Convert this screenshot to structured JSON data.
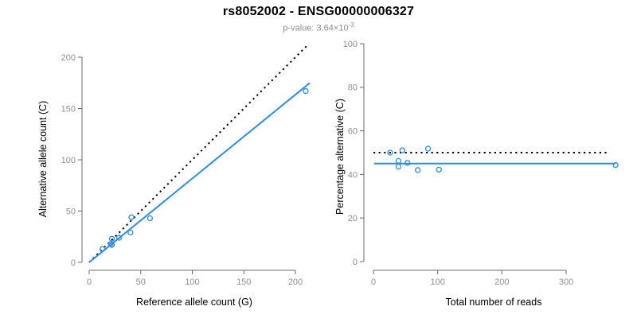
{
  "header": {
    "title": "rs8052002 - ENSG00000006327",
    "subtitle_prefix": "p-value: 3.64×10",
    "subtitle_exponent": "-3"
  },
  "colors": {
    "accent_blue": "#2d8ceb",
    "dotted_line": "#000000",
    "axis_line": "#6b6b6b",
    "tick_label": "#8f8f8f",
    "axis_title": "#000000",
    "subtitle": "#8c8c8c",
    "background": "#ffffff"
  },
  "chart_data": [
    {
      "type": "scatter",
      "panel": "allele-counts",
      "xlabel": "Reference allele count (G)",
      "ylabel": "Alternative allele count (C)",
      "xlim": [
        0,
        215
      ],
      "ylim": [
        0,
        215
      ],
      "xticks": [
        0,
        50,
        100,
        150,
        200
      ],
      "yticks": [
        0,
        50,
        100,
        150,
        200
      ],
      "grid": false,
      "legend": "none",
      "points": [
        [
          13,
          13
        ],
        [
          21,
          18
        ],
        [
          22,
          17
        ],
        [
          22,
          23
        ],
        [
          29,
          24
        ],
        [
          40,
          29
        ],
        [
          41,
          44
        ],
        [
          59,
          43
        ],
        [
          210,
          167
        ]
      ],
      "lines": [
        {
          "name": "identity-line",
          "style": "dotted",
          "color": "#000000",
          "x1": 0,
          "y1": 0,
          "x2": 212,
          "y2": 212
        },
        {
          "name": "regression-line",
          "style": "solid",
          "color": "#2d8ceb",
          "x1": 0,
          "y1": 0,
          "x2": 214,
          "y2": 175
        }
      ]
    },
    {
      "type": "scatter",
      "panel": "percentage-vs-reads",
      "xlabel": "Total number of reads",
      "ylabel": "Percentage alternative (C)",
      "xlim": [
        0,
        390
      ],
      "ylim": [
        0,
        100
      ],
      "xticks": [
        0,
        100,
        200,
        300
      ],
      "yticks": [
        0,
        20,
        40,
        60,
        80,
        100
      ],
      "grid": false,
      "legend": "none",
      "points": [
        [
          26,
          50.0
        ],
        [
          39,
          46.2
        ],
        [
          39,
          43.6
        ],
        [
          45,
          51.1
        ],
        [
          53,
          45.3
        ],
        [
          69,
          42.0
        ],
        [
          85,
          51.8
        ],
        [
          102,
          42.2
        ],
        [
          377,
          44.3
        ]
      ],
      "lines": [
        {
          "name": "expected-percentage-line",
          "style": "dotted",
          "color": "#000000",
          "x1": 0,
          "y1": 50,
          "x2": 368,
          "y2": 50
        },
        {
          "name": "fitted-percentage-line",
          "style": "solid",
          "color": "#2d8ceb",
          "x1": 1,
          "y1": 45,
          "x2": 377,
          "y2": 45
        }
      ]
    }
  ]
}
